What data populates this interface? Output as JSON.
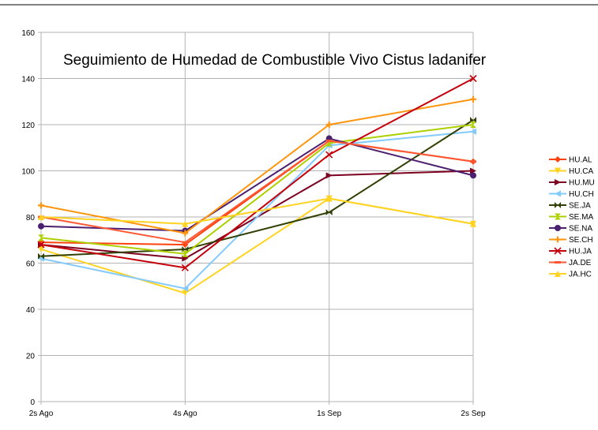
{
  "chart_data": {
    "type": "line",
    "title": "Seguimiento de Humedad de Combustible Vivo Cistus ladanifer",
    "categories": [
      "2s Ago",
      "4s Ago",
      "1s Sep",
      "2s Sep"
    ],
    "ylim": [
      0,
      160
    ],
    "yticks": [
      0,
      20,
      40,
      60,
      80,
      100,
      120,
      140,
      160
    ],
    "grid": true,
    "legend_position": "right",
    "series": [
      {
        "name": "HU.AL",
        "color": "#ff420e",
        "marker": "diamond",
        "values": [
          69,
          68,
          113,
          104
        ]
      },
      {
        "name": "HU.CA",
        "color": "#ffd320",
        "marker": "triangle-down",
        "values": [
          66,
          47,
          88,
          77
        ]
      },
      {
        "name": "HU.MU",
        "color": "#7e0021",
        "marker": "triangle-right",
        "values": [
          68,
          62,
          98,
          100
        ]
      },
      {
        "name": "HU.CH",
        "color": "#83caff",
        "marker": "triangle-left",
        "values": [
          62,
          49,
          111,
          117
        ]
      },
      {
        "name": "SE.JA",
        "color": "#314004",
        "marker": "bowtie",
        "values": [
          63,
          66,
          82,
          122
        ]
      },
      {
        "name": "SE.MA",
        "color": "#aecf00",
        "marker": "hourglass",
        "values": [
          71,
          64,
          112,
          120
        ]
      },
      {
        "name": "SE.NA",
        "color": "#4b1f6f",
        "marker": "circle",
        "values": [
          76,
          74,
          114,
          98
        ]
      },
      {
        "name": "SE.CH",
        "color": "#ff950e",
        "marker": "star",
        "values": [
          85,
          73,
          120,
          131
        ]
      },
      {
        "name": "HU.JA",
        "color": "#c5000b",
        "marker": "x",
        "values": [
          68,
          58,
          107,
          140
        ]
      },
      {
        "name": "JA.DE",
        "color": "#ff5733",
        "marker": "dash",
        "values": [
          80,
          69,
          113,
          104
        ]
      },
      {
        "name": "JA.HC",
        "color": "#ffd320",
        "marker": "triangle-up",
        "values": [
          80,
          77,
          88,
          77
        ]
      }
    ]
  }
}
